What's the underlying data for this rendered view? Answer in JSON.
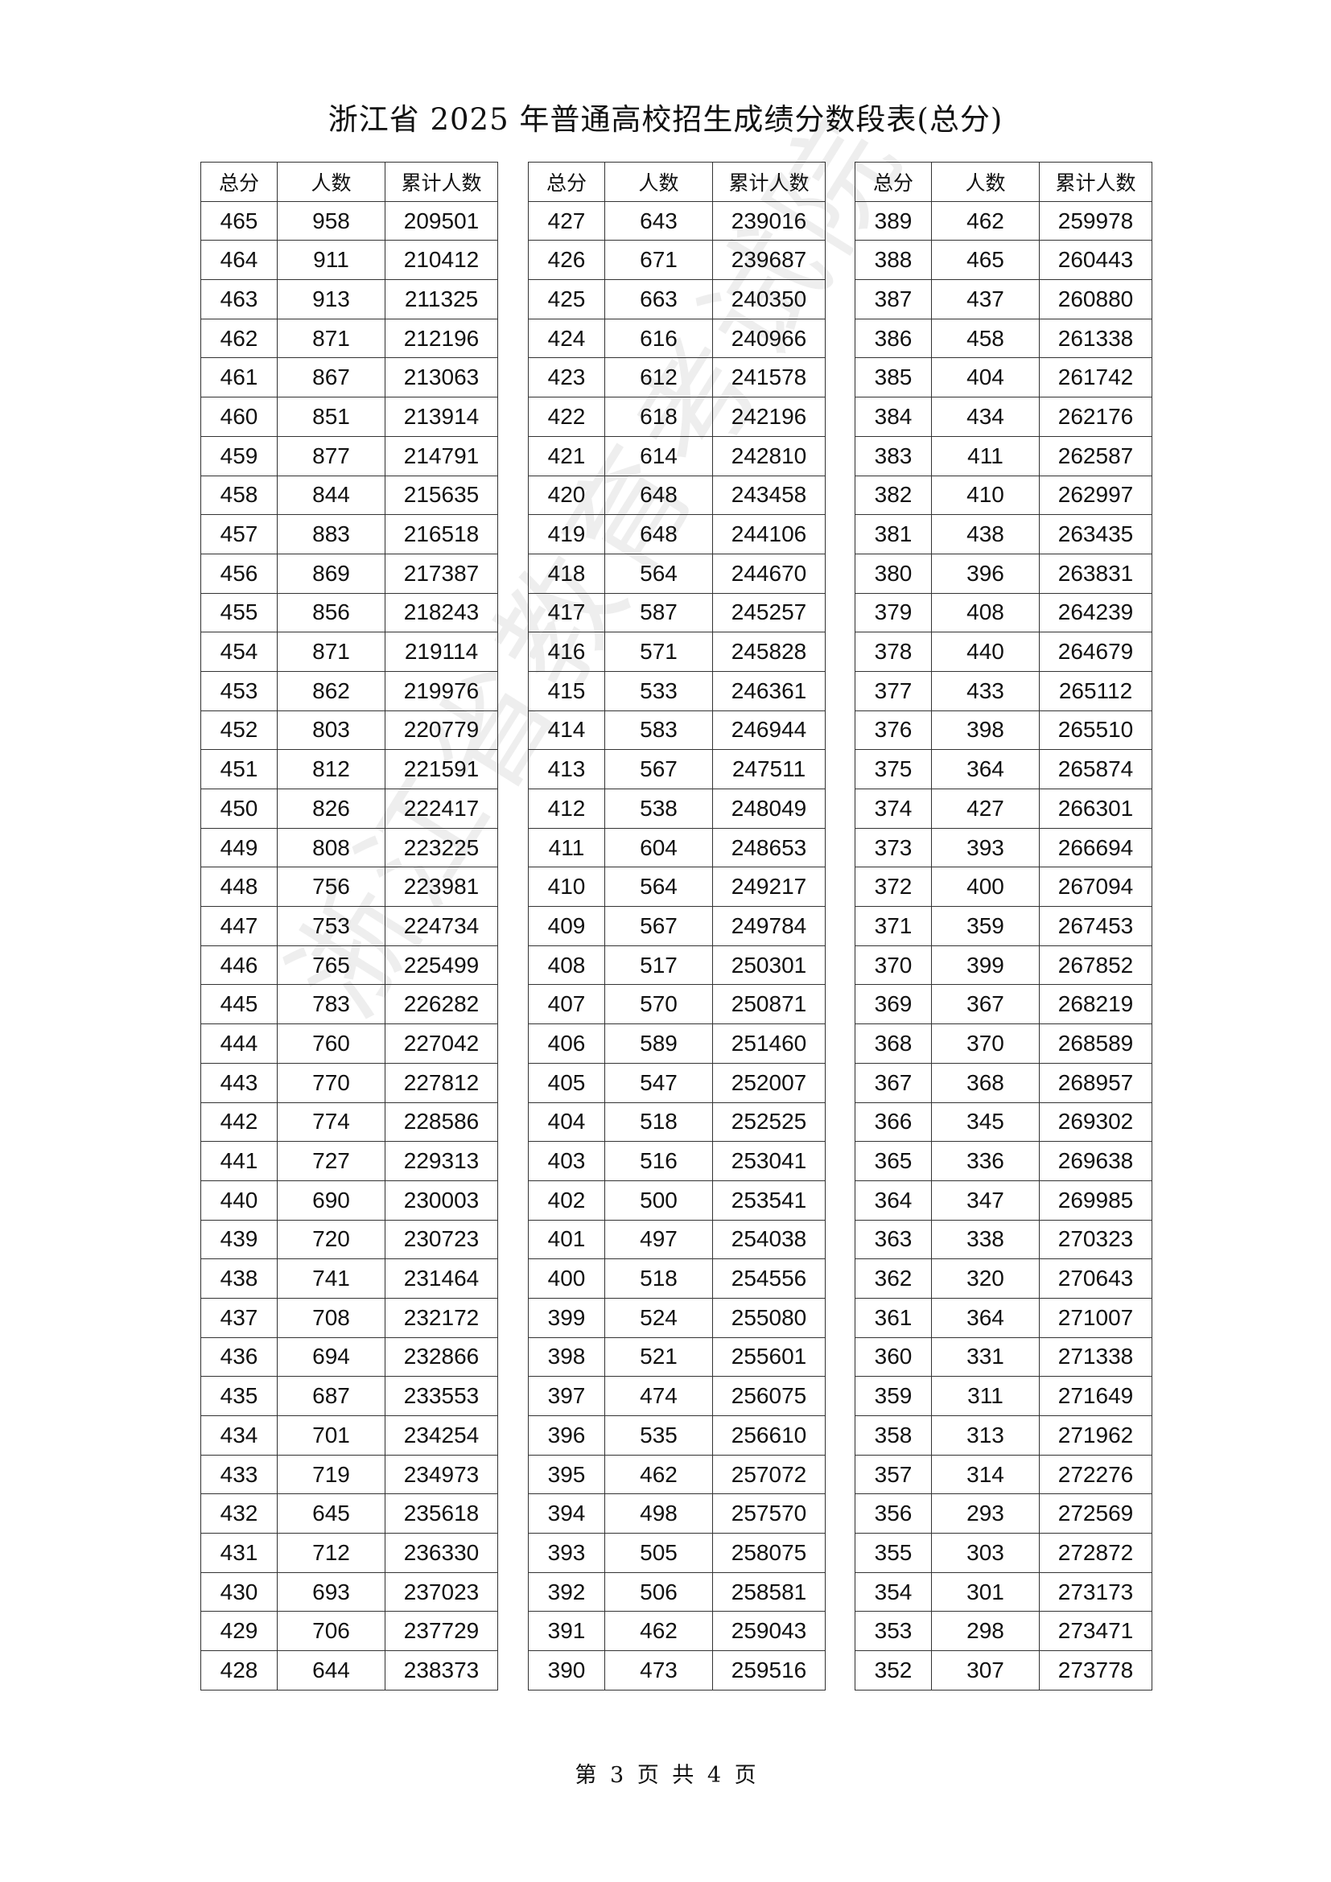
{
  "title": "浙江省 2025 年普通高校招生成绩分数段表(总分)",
  "headers": [
    "总分",
    "人数",
    "累计人数"
  ],
  "tables": [
    [
      [
        "465",
        "958",
        "209501"
      ],
      [
        "464",
        "911",
        "210412"
      ],
      [
        "463",
        "913",
        "211325"
      ],
      [
        "462",
        "871",
        "212196"
      ],
      [
        "461",
        "867",
        "213063"
      ],
      [
        "460",
        "851",
        "213914"
      ],
      [
        "459",
        "877",
        "214791"
      ],
      [
        "458",
        "844",
        "215635"
      ],
      [
        "457",
        "883",
        "216518"
      ],
      [
        "456",
        "869",
        "217387"
      ],
      [
        "455",
        "856",
        "218243"
      ],
      [
        "454",
        "871",
        "219114"
      ],
      [
        "453",
        "862",
        "219976"
      ],
      [
        "452",
        "803",
        "220779"
      ],
      [
        "451",
        "812",
        "221591"
      ],
      [
        "450",
        "826",
        "222417"
      ],
      [
        "449",
        "808",
        "223225"
      ],
      [
        "448",
        "756",
        "223981"
      ],
      [
        "447",
        "753",
        "224734"
      ],
      [
        "446",
        "765",
        "225499"
      ],
      [
        "445",
        "783",
        "226282"
      ],
      [
        "444",
        "760",
        "227042"
      ],
      [
        "443",
        "770",
        "227812"
      ],
      [
        "442",
        "774",
        "228586"
      ],
      [
        "441",
        "727",
        "229313"
      ],
      [
        "440",
        "690",
        "230003"
      ],
      [
        "439",
        "720",
        "230723"
      ],
      [
        "438",
        "741",
        "231464"
      ],
      [
        "437",
        "708",
        "232172"
      ],
      [
        "436",
        "694",
        "232866"
      ],
      [
        "435",
        "687",
        "233553"
      ],
      [
        "434",
        "701",
        "234254"
      ],
      [
        "433",
        "719",
        "234973"
      ],
      [
        "432",
        "645",
        "235618"
      ],
      [
        "431",
        "712",
        "236330"
      ],
      [
        "430",
        "693",
        "237023"
      ],
      [
        "429",
        "706",
        "237729"
      ],
      [
        "428",
        "644",
        "238373"
      ]
    ],
    [
      [
        "427",
        "643",
        "239016"
      ],
      [
        "426",
        "671",
        "239687"
      ],
      [
        "425",
        "663",
        "240350"
      ],
      [
        "424",
        "616",
        "240966"
      ],
      [
        "423",
        "612",
        "241578"
      ],
      [
        "422",
        "618",
        "242196"
      ],
      [
        "421",
        "614",
        "242810"
      ],
      [
        "420",
        "648",
        "243458"
      ],
      [
        "419",
        "648",
        "244106"
      ],
      [
        "418",
        "564",
        "244670"
      ],
      [
        "417",
        "587",
        "245257"
      ],
      [
        "416",
        "571",
        "245828"
      ],
      [
        "415",
        "533",
        "246361"
      ],
      [
        "414",
        "583",
        "246944"
      ],
      [
        "413",
        "567",
        "247511"
      ],
      [
        "412",
        "538",
        "248049"
      ],
      [
        "411",
        "604",
        "248653"
      ],
      [
        "410",
        "564",
        "249217"
      ],
      [
        "409",
        "567",
        "249784"
      ],
      [
        "408",
        "517",
        "250301"
      ],
      [
        "407",
        "570",
        "250871"
      ],
      [
        "406",
        "589",
        "251460"
      ],
      [
        "405",
        "547",
        "252007"
      ],
      [
        "404",
        "518",
        "252525"
      ],
      [
        "403",
        "516",
        "253041"
      ],
      [
        "402",
        "500",
        "253541"
      ],
      [
        "401",
        "497",
        "254038"
      ],
      [
        "400",
        "518",
        "254556"
      ],
      [
        "399",
        "524",
        "255080"
      ],
      [
        "398",
        "521",
        "255601"
      ],
      [
        "397",
        "474",
        "256075"
      ],
      [
        "396",
        "535",
        "256610"
      ],
      [
        "395",
        "462",
        "257072"
      ],
      [
        "394",
        "498",
        "257570"
      ],
      [
        "393",
        "505",
        "258075"
      ],
      [
        "392",
        "506",
        "258581"
      ],
      [
        "391",
        "462",
        "259043"
      ],
      [
        "390",
        "473",
        "259516"
      ]
    ],
    [
      [
        "389",
        "462",
        "259978"
      ],
      [
        "388",
        "465",
        "260443"
      ],
      [
        "387",
        "437",
        "260880"
      ],
      [
        "386",
        "458",
        "261338"
      ],
      [
        "385",
        "404",
        "261742"
      ],
      [
        "384",
        "434",
        "262176"
      ],
      [
        "383",
        "411",
        "262587"
      ],
      [
        "382",
        "410",
        "262997"
      ],
      [
        "381",
        "438",
        "263435"
      ],
      [
        "380",
        "396",
        "263831"
      ],
      [
        "379",
        "408",
        "264239"
      ],
      [
        "378",
        "440",
        "264679"
      ],
      [
        "377",
        "433",
        "265112"
      ],
      [
        "376",
        "398",
        "265510"
      ],
      [
        "375",
        "364",
        "265874"
      ],
      [
        "374",
        "427",
        "266301"
      ],
      [
        "373",
        "393",
        "266694"
      ],
      [
        "372",
        "400",
        "267094"
      ],
      [
        "371",
        "359",
        "267453"
      ],
      [
        "370",
        "399",
        "267852"
      ],
      [
        "369",
        "367",
        "268219"
      ],
      [
        "368",
        "370",
        "268589"
      ],
      [
        "367",
        "368",
        "268957"
      ],
      [
        "366",
        "345",
        "269302"
      ],
      [
        "365",
        "336",
        "269638"
      ],
      [
        "364",
        "347",
        "269985"
      ],
      [
        "363",
        "338",
        "270323"
      ],
      [
        "362",
        "320",
        "270643"
      ],
      [
        "361",
        "364",
        "271007"
      ],
      [
        "360",
        "331",
        "271338"
      ],
      [
        "359",
        "311",
        "271649"
      ],
      [
        "358",
        "313",
        "271962"
      ],
      [
        "357",
        "314",
        "272276"
      ],
      [
        "356",
        "293",
        "272569"
      ],
      [
        "355",
        "303",
        "272872"
      ],
      [
        "354",
        "301",
        "273173"
      ],
      [
        "353",
        "298",
        "273471"
      ],
      [
        "352",
        "307",
        "273778"
      ]
    ]
  ],
  "footer": "第 3 页 共 4 页",
  "watermark": "浙江省教育考试院"
}
